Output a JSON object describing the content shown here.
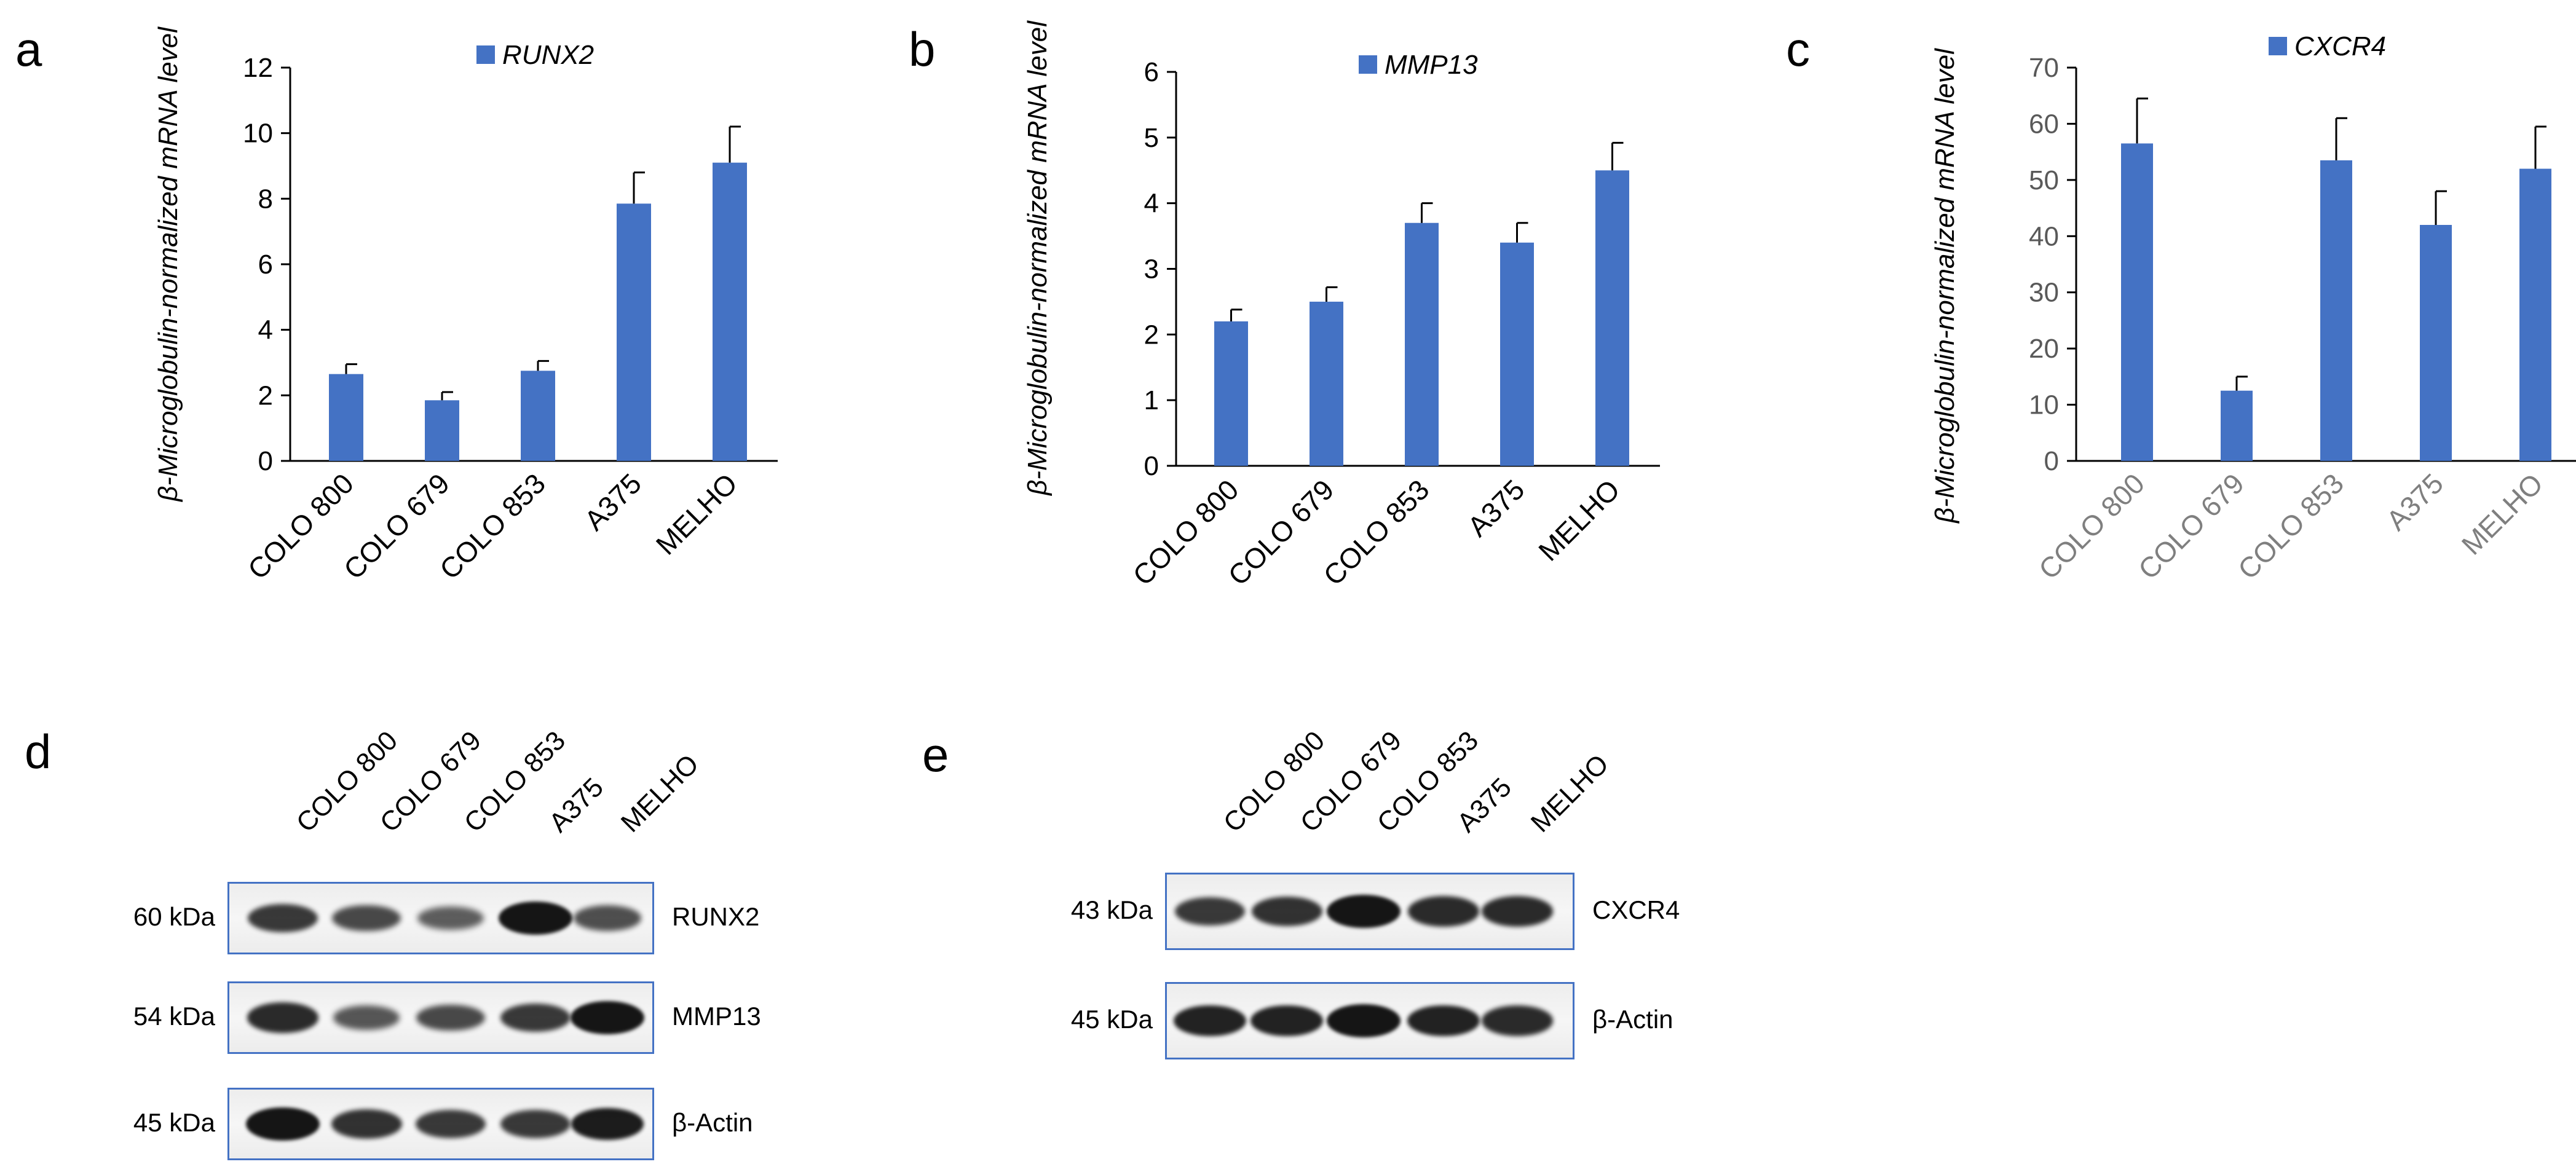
{
  "figure": {
    "panels": [
      {
        "letter": "a"
      },
      {
        "letter": "b"
      },
      {
        "letter": "c"
      },
      {
        "letter": "d"
      },
      {
        "letter": "e"
      }
    ]
  },
  "chart_data": [
    {
      "type": "bar",
      "panel": "a",
      "categories": [
        "COLO 800",
        "COLO 679",
        "COLO 853",
        "A375",
        "MELHO"
      ],
      "series": [
        {
          "name": "RUNX2",
          "values": [
            2.65,
            1.85,
            2.75,
            7.85,
            9.1
          ],
          "errors": [
            0.3,
            0.25,
            0.3,
            0.95,
            1.1
          ]
        }
      ],
      "ylabel": "β-Microglobulin-normalized mRNA level",
      "ylim": [
        0,
        12
      ],
      "yticks": [
        0,
        2,
        4,
        6,
        8,
        10,
        12
      ],
      "grid": false,
      "legend": "top-center",
      "color": "#4472c4"
    },
    {
      "type": "bar",
      "panel": "b",
      "categories": [
        "COLO 800",
        "COLO 679",
        "COLO 853",
        "A375",
        "MELHO"
      ],
      "series": [
        {
          "name": "MMP13",
          "values": [
            2.2,
            2.5,
            3.7,
            3.4,
            4.5
          ],
          "errors": [
            0.18,
            0.22,
            0.3,
            0.3,
            0.42
          ]
        }
      ],
      "ylabel": "β-Microglobulin-normalized mRNA level",
      "ylim": [
        0,
        6
      ],
      "yticks": [
        0,
        1,
        2,
        3,
        4,
        5,
        6
      ],
      "grid": false,
      "legend": "top-center",
      "color": "#4472c4"
    },
    {
      "type": "bar",
      "panel": "c",
      "categories": [
        "COLO 800",
        "COLO 679",
        "COLO 853",
        "A375",
        "MELHO"
      ],
      "series": [
        {
          "name": "CXCR4",
          "values": [
            56.5,
            12.5,
            53.5,
            42,
            52
          ],
          "errors": [
            8,
            2.5,
            7.5,
            6,
            7.5
          ]
        }
      ],
      "ylabel": "β-Microglobulin-normalized mRNA level",
      "ylim": [
        0,
        70
      ],
      "yticks": [
        0,
        10,
        20,
        30,
        40,
        50,
        60,
        70
      ],
      "grid": false,
      "legend": "top-center",
      "color": "#4472c4"
    }
  ],
  "western_blots": [
    {
      "panel": "d",
      "lanes": [
        "COLO 800",
        "COLO 679",
        "COLO 853",
        "A375",
        "MELHO"
      ],
      "rows": [
        {
          "mw": "60 kDa",
          "protein": "RUNX2",
          "intensity": [
            0.75,
            0.65,
            0.5,
            1.0,
            0.6
          ]
        },
        {
          "mw": "54 kDa",
          "protein": "MMP13",
          "intensity": [
            0.85,
            0.55,
            0.65,
            0.75,
            1.0
          ]
        },
        {
          "mw": "45 kDa",
          "protein": "β-Actin",
          "intensity": [
            1.0,
            0.8,
            0.75,
            0.75,
            0.95
          ]
        }
      ]
    },
    {
      "panel": "e",
      "lanes": [
        "COLO 800",
        "COLO 679",
        "COLO 853",
        "A375",
        "MELHO"
      ],
      "rows": [
        {
          "mw": "43 kDa",
          "protein": "CXCR4",
          "intensity": [
            0.75,
            0.8,
            1.0,
            0.85,
            0.85
          ]
        },
        {
          "mw": "45 kDa",
          "protein": "β-Actin",
          "intensity": [
            0.9,
            0.9,
            1.0,
            0.9,
            0.85
          ]
        }
      ]
    }
  ]
}
